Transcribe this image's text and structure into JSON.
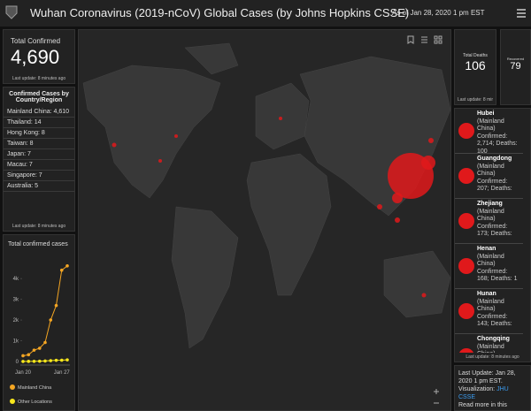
{
  "header": {
    "title": "Wuhan Coronavirus (2019-nCoV) Global Cases (by Johns Hopkins CSSE)",
    "subtitle": "As of Jan 28, 2020 1 pm EST"
  },
  "total_confirmed": {
    "label": "Total Confirmed",
    "value": "4,690",
    "update": "Last update: 8 minutes ago"
  },
  "by_country": {
    "title": "Confirmed Cases by Country/Region",
    "items": [
      "Mainland China: 4,610",
      "Thailand: 14",
      "Hong Kong: 8",
      "Taiwan: 8",
      "Japan: 7",
      "Macau: 7",
      "Singapore: 7",
      "Australia: 5"
    ],
    "update": "Last update: 8 minutes ago"
  },
  "chart_data": {
    "type": "line",
    "title": "Total confirmed cases",
    "categories": [
      "Jan 20",
      null,
      null,
      null,
      null,
      null,
      null,
      "Jan 27",
      null
    ],
    "series": [
      {
        "name": "Mainland China",
        "color": "#f5a623",
        "values": [
          278,
          326,
          547,
          639,
          916,
          2000,
          2700,
          4400,
          4610
        ]
      },
      {
        "name": "Other Locations",
        "color": "#f8e71c",
        "values": [
          4,
          6,
          8,
          14,
          25,
          40,
          57,
          64,
          80
        ]
      }
    ],
    "ylim": [
      0,
      4900
    ],
    "yticks": [
      0,
      {
        "value": 1000,
        "label": "1k"
      },
      {
        "value": 2000,
        "label": "2k"
      },
      {
        "value": 3000,
        "label": "3k"
      },
      {
        "value": 4000,
        "label": "4k"
      }
    ],
    "grid": false
  },
  "total_deaths": {
    "label": "Total Deaths",
    "value": "106",
    "update": "Last update: 8 mir"
  },
  "recovered": {
    "label": "Recovered",
    "value": "79"
  },
  "provinces": {
    "items": [
      {
        "name": "Hubei",
        "region": "(Mainland China)",
        "detail": "Confirmed: 2,714; Deaths: 100"
      },
      {
        "name": "Guangdong",
        "region": "(Mainland China)",
        "detail": "Confirmed: 207; Deaths:"
      },
      {
        "name": "Zhejiang",
        "region": "(Mainland China)",
        "detail": "Confirmed: 173; Deaths:"
      },
      {
        "name": "Henan",
        "region": "(Mainland China)",
        "detail": "Confirmed: 168; Deaths: 1"
      },
      {
        "name": "Hunan",
        "region": "(Mainland China)",
        "detail": "Confirmed: 143; Deaths:"
      },
      {
        "name": "Chongqing",
        "region": "(Mainland China)",
        "detail": ""
      }
    ],
    "update": "Last update: 8 minutes ago"
  },
  "info": {
    "line1": "Last Update: Jan 28, 2020 1 pm EST.",
    "viz_label": "Visualization:",
    "viz_link": "JHU CSSE",
    "more": "Read more in this"
  }
}
